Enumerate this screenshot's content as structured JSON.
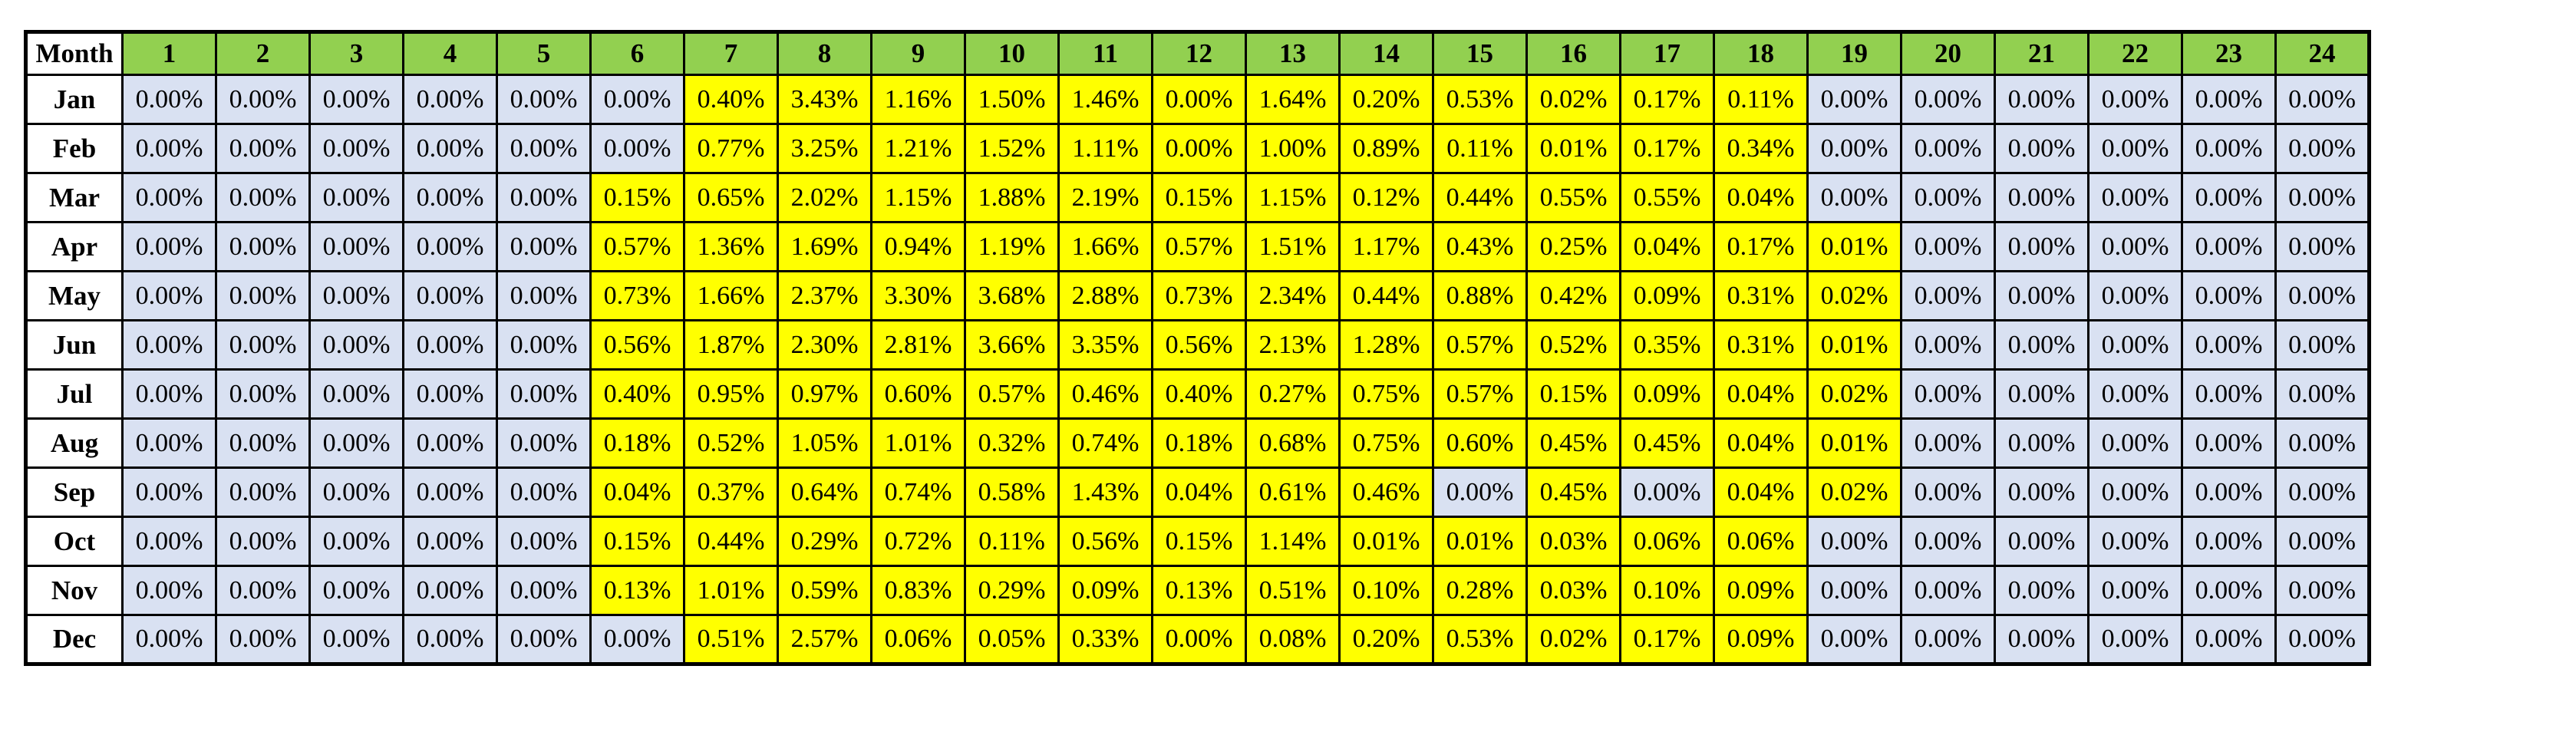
{
  "chart_data": {
    "type": "table",
    "corner_label": "Month",
    "hours": [
      "1",
      "2",
      "3",
      "4",
      "5",
      "6",
      "7",
      "8",
      "9",
      "10",
      "11",
      "12",
      "13",
      "14",
      "15",
      "16",
      "17",
      "18",
      "19",
      "20",
      "21",
      "22",
      "23",
      "24"
    ],
    "months": [
      "Jan",
      "Feb",
      "Mar",
      "Apr",
      "May",
      "Jun",
      "Jul",
      "Aug",
      "Sep",
      "Oct",
      "Nov",
      "Dec"
    ],
    "rows": [
      [
        "0.00%",
        "0.00%",
        "0.00%",
        "0.00%",
        "0.00%",
        "0.00%",
        "0.40%",
        "3.43%",
        "1.16%",
        "1.50%",
        "1.46%",
        "0.00%",
        "1.64%",
        "0.20%",
        "0.53%",
        "0.02%",
        "0.17%",
        "0.11%",
        "0.00%",
        "0.00%",
        "0.00%",
        "0.00%",
        "0.00%",
        "0.00%"
      ],
      [
        "0.00%",
        "0.00%",
        "0.00%",
        "0.00%",
        "0.00%",
        "0.00%",
        "0.77%",
        "3.25%",
        "1.21%",
        "1.52%",
        "1.11%",
        "0.00%",
        "1.00%",
        "0.89%",
        "0.11%",
        "0.01%",
        "0.17%",
        "0.34%",
        "0.00%",
        "0.00%",
        "0.00%",
        "0.00%",
        "0.00%",
        "0.00%"
      ],
      [
        "0.00%",
        "0.00%",
        "0.00%",
        "0.00%",
        "0.00%",
        "0.15%",
        "0.65%",
        "2.02%",
        "1.15%",
        "1.88%",
        "2.19%",
        "0.15%",
        "1.15%",
        "0.12%",
        "0.44%",
        "0.55%",
        "0.55%",
        "0.04%",
        "0.00%",
        "0.00%",
        "0.00%",
        "0.00%",
        "0.00%",
        "0.00%"
      ],
      [
        "0.00%",
        "0.00%",
        "0.00%",
        "0.00%",
        "0.00%",
        "0.57%",
        "1.36%",
        "1.69%",
        "0.94%",
        "1.19%",
        "1.66%",
        "0.57%",
        "1.51%",
        "1.17%",
        "0.43%",
        "0.25%",
        "0.04%",
        "0.17%",
        "0.01%",
        "0.00%",
        "0.00%",
        "0.00%",
        "0.00%",
        "0.00%"
      ],
      [
        "0.00%",
        "0.00%",
        "0.00%",
        "0.00%",
        "0.00%",
        "0.73%",
        "1.66%",
        "2.37%",
        "3.30%",
        "3.68%",
        "2.88%",
        "0.73%",
        "2.34%",
        "0.44%",
        "0.88%",
        "0.42%",
        "0.09%",
        "0.31%",
        "0.02%",
        "0.00%",
        "0.00%",
        "0.00%",
        "0.00%",
        "0.00%"
      ],
      [
        "0.00%",
        "0.00%",
        "0.00%",
        "0.00%",
        "0.00%",
        "0.56%",
        "1.87%",
        "2.30%",
        "2.81%",
        "3.66%",
        "3.35%",
        "0.56%",
        "2.13%",
        "1.28%",
        "0.57%",
        "0.52%",
        "0.35%",
        "0.31%",
        "0.01%",
        "0.00%",
        "0.00%",
        "0.00%",
        "0.00%",
        "0.00%"
      ],
      [
        "0.00%",
        "0.00%",
        "0.00%",
        "0.00%",
        "0.00%",
        "0.40%",
        "0.95%",
        "0.97%",
        "0.60%",
        "0.57%",
        "0.46%",
        "0.40%",
        "0.27%",
        "0.75%",
        "0.57%",
        "0.15%",
        "0.09%",
        "0.04%",
        "0.02%",
        "0.00%",
        "0.00%",
        "0.00%",
        "0.00%",
        "0.00%"
      ],
      [
        "0.00%",
        "0.00%",
        "0.00%",
        "0.00%",
        "0.00%",
        "0.18%",
        "0.52%",
        "1.05%",
        "1.01%",
        "0.32%",
        "0.74%",
        "0.18%",
        "0.68%",
        "0.75%",
        "0.60%",
        "0.45%",
        "0.45%",
        "0.04%",
        "0.01%",
        "0.00%",
        "0.00%",
        "0.00%",
        "0.00%",
        "0.00%"
      ],
      [
        "0.00%",
        "0.00%",
        "0.00%",
        "0.00%",
        "0.00%",
        "0.04%",
        "0.37%",
        "0.64%",
        "0.74%",
        "0.58%",
        "1.43%",
        "0.04%",
        "0.61%",
        "0.46%",
        "0.00%",
        "0.45%",
        "0.00%",
        "0.04%",
        "0.02%",
        "0.00%",
        "0.00%",
        "0.00%",
        "0.00%",
        "0.00%"
      ],
      [
        "0.00%",
        "0.00%",
        "0.00%",
        "0.00%",
        "0.00%",
        "0.15%",
        "0.44%",
        "0.29%",
        "0.72%",
        "0.11%",
        "0.56%",
        "0.15%",
        "1.14%",
        "0.01%",
        "0.01%",
        "0.03%",
        "0.06%",
        "0.06%",
        "0.00%",
        "0.00%",
        "0.00%",
        "0.00%",
        "0.00%",
        "0.00%"
      ],
      [
        "0.00%",
        "0.00%",
        "0.00%",
        "0.00%",
        "0.00%",
        "0.13%",
        "1.01%",
        "0.59%",
        "0.83%",
        "0.29%",
        "0.09%",
        "0.13%",
        "0.51%",
        "0.10%",
        "0.28%",
        "0.03%",
        "0.10%",
        "0.09%",
        "0.00%",
        "0.00%",
        "0.00%",
        "0.00%",
        "0.00%",
        "0.00%"
      ],
      [
        "0.00%",
        "0.00%",
        "0.00%",
        "0.00%",
        "0.00%",
        "0.00%",
        "0.51%",
        "2.57%",
        "0.06%",
        "0.05%",
        "0.33%",
        "0.00%",
        "0.08%",
        "0.20%",
        "0.53%",
        "0.02%",
        "0.17%",
        "0.09%",
        "0.00%",
        "0.00%",
        "0.00%",
        "0.00%",
        "0.00%",
        "0.00%"
      ]
    ],
    "highlighted_cells": [
      [
        7,
        18
      ],
      [
        7,
        18
      ],
      [
        6,
        18
      ],
      [
        6,
        19
      ],
      [
        6,
        19
      ],
      [
        6,
        19
      ],
      [
        6,
        19
      ],
      [
        6,
        19
      ],
      [
        6,
        14,
        16,
        16,
        18,
        19
      ],
      [
        6,
        18
      ],
      [
        6,
        18
      ],
      [
        7,
        18
      ]
    ],
    "colors": {
      "header_fill": "#92d050",
      "highlight_fill": "#ffff00",
      "default_fill": "#d9e1f2",
      "month_col_fill": "#ffffff",
      "border": "#000000"
    }
  }
}
